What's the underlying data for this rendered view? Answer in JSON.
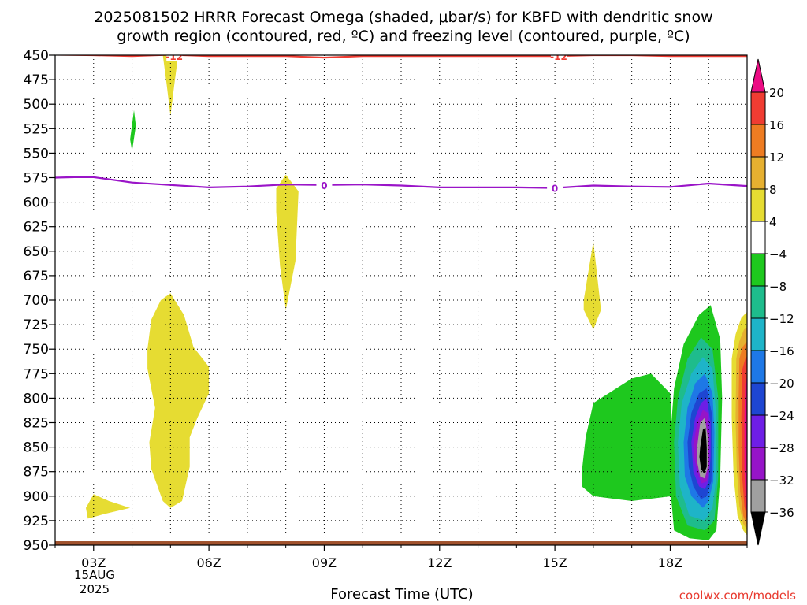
{
  "title_line1": "2025081502 HRRR Forecast Omega (shaded, μbar/s) for KBFD with dendritic snow",
  "title_line2": "growth region (contoured, red, ºC) and freezing level (contoured, purple, ºC)",
  "credit": "coolwx.com/models",
  "date_label": {
    "day": "15AUG",
    "year": "2025"
  },
  "chart_data": {
    "type": "time-height contour",
    "xlabel": "Forecast Time (UTC)",
    "ylabel": "",
    "x_ticks": [
      "03Z",
      "06Z",
      "09Z",
      "12Z",
      "15Z",
      "18Z"
    ],
    "x_range_hours": [
      2,
      20
    ],
    "y_ticks": [
      450,
      475,
      500,
      525,
      550,
      575,
      600,
      625,
      650,
      675,
      700,
      725,
      750,
      775,
      800,
      825,
      850,
      875,
      900,
      925,
      950
    ],
    "ylim": [
      450,
      950
    ],
    "colorbar": {
      "ticks": [
        20,
        16,
        12,
        8,
        4,
        -4,
        -8,
        -12,
        -16,
        -20,
        -24,
        -28,
        -32,
        -36
      ],
      "colors": [
        "#ec0c84",
        "#f03c32",
        "#ee7c22",
        "#e6b030",
        "#e6dc32",
        "#ffffff",
        "#1ec81e",
        "#1ebc8c",
        "#1eb4c8",
        "#1e78e6",
        "#1e46d2",
        "#6e1ee6",
        "#9614c8",
        "#a0a0a0",
        "#000000"
      ]
    },
    "contours": [
      {
        "label": "-12",
        "color": "#f03c32",
        "points": [
          [
            2,
            449.5
          ],
          [
            3,
            450
          ],
          [
            4,
            451
          ],
          [
            5,
            449.5
          ],
          [
            6,
            451
          ],
          [
            7,
            451
          ],
          [
            8,
            451
          ],
          [
            9,
            452.5
          ],
          [
            10,
            451
          ],
          [
            11,
            451
          ],
          [
            12,
            451
          ],
          [
            13,
            451
          ],
          [
            14,
            451
          ],
          [
            15,
            451
          ],
          [
            16,
            450
          ],
          [
            17,
            450
          ],
          [
            18,
            451
          ],
          [
            19,
            451
          ],
          [
            20,
            451
          ]
        ],
        "label_at": [
          [
            5.1,
            451
          ],
          [
            15.1,
            451
          ]
        ]
      },
      {
        "label": "0",
        "color": "#9a14c8",
        "points": [
          [
            2,
            575
          ],
          [
            2.5,
            574.5
          ],
          [
            3,
            574.5
          ],
          [
            4,
            580
          ],
          [
            5,
            582.5
          ],
          [
            6,
            585
          ],
          [
            7,
            584
          ],
          [
            8,
            582
          ],
          [
            9,
            582.5
          ],
          [
            10,
            582
          ],
          [
            11,
            583
          ],
          [
            12,
            585
          ],
          [
            13,
            585
          ],
          [
            14,
            585
          ],
          [
            15,
            585.5
          ],
          [
            16,
            583
          ],
          [
            17,
            584
          ],
          [
            18,
            584.5
          ],
          [
            19,
            581
          ],
          [
            20,
            583.5
          ]
        ],
        "label_at": [
          [
            9,
            582.5
          ],
          [
            15,
            585.5
          ]
        ]
      }
    ],
    "shaded_regions": [
      {
        "value": 4,
        "color": "#e6dc32",
        "points": [
          [
            4.8,
            450
          ],
          [
            5.2,
            450
          ],
          [
            5.1,
            480
          ],
          [
            5.0,
            512
          ],
          [
            4.9,
            480
          ]
        ]
      },
      {
        "value": -4,
        "color": "#1ec81e",
        "points": [
          [
            3.95,
            536
          ],
          [
            4.05,
            506
          ],
          [
            4.1,
            522
          ],
          [
            4.0,
            548
          ]
        ]
      },
      {
        "value": 4,
        "color": "#e6dc32",
        "points": [
          [
            7.75,
            586
          ],
          [
            8.0,
            572
          ],
          [
            8.33,
            589
          ],
          [
            8.25,
            660
          ],
          [
            8.0,
            710
          ],
          [
            7.85,
            665
          ],
          [
            7.75,
            610
          ]
        ]
      },
      {
        "value": 4,
        "color": "#e6dc32",
        "points": [
          [
            15.75,
            700
          ],
          [
            16.0,
            640
          ],
          [
            16.2,
            710
          ],
          [
            16.0,
            730
          ],
          [
            15.75,
            710
          ]
        ]
      },
      {
        "value": 4,
        "color": "#e6dc32",
        "points": [
          [
            4.4,
            750
          ],
          [
            4.5,
            720
          ],
          [
            4.75,
            700
          ],
          [
            5.0,
            693
          ],
          [
            5.35,
            715
          ],
          [
            5.6,
            748
          ],
          [
            6.0,
            768
          ],
          [
            6.0,
            795
          ],
          [
            5.7,
            820
          ],
          [
            5.5,
            840
          ],
          [
            5.5,
            870
          ],
          [
            5.3,
            905
          ],
          [
            5.0,
            912
          ],
          [
            4.8,
            905
          ],
          [
            4.5,
            872
          ],
          [
            4.45,
            845
          ],
          [
            4.6,
            810
          ],
          [
            4.5,
            790
          ],
          [
            4.4,
            770
          ]
        ]
      },
      {
        "value": 4,
        "color": "#e6dc32",
        "points": [
          [
            2.8,
            912
          ],
          [
            3.0,
            898
          ],
          [
            3.4,
            905
          ],
          [
            3.95,
            912
          ],
          [
            3.3,
            918
          ],
          [
            2.85,
            923
          ]
        ]
      },
      {
        "value": -4,
        "color": "#1ec81e",
        "points": [
          [
            15.7,
            875
          ],
          [
            15.8,
            840
          ],
          [
            16.0,
            805
          ],
          [
            17.0,
            780
          ],
          [
            17.5,
            775
          ],
          [
            18.0,
            795
          ],
          [
            18.05,
            840
          ],
          [
            18.05,
            900
          ],
          [
            17.0,
            905
          ],
          [
            16.0,
            900
          ],
          [
            15.7,
            890
          ]
        ]
      },
      {
        "value": -4,
        "color": "#1ec81e",
        "points": [
          [
            18.0,
            842
          ],
          [
            18.1,
            790
          ],
          [
            18.35,
            745
          ],
          [
            18.75,
            715
          ],
          [
            19.05,
            705
          ],
          [
            19.3,
            740
          ],
          [
            19.35,
            800
          ],
          [
            19.3,
            880
          ],
          [
            19.2,
            935
          ],
          [
            19.0,
            945
          ],
          [
            18.5,
            943
          ],
          [
            18.1,
            935
          ],
          [
            18.0,
            890
          ]
        ]
      },
      {
        "value": -8,
        "color": "#1ebc8c",
        "points": [
          [
            18.1,
            845
          ],
          [
            18.2,
            800
          ],
          [
            18.45,
            760
          ],
          [
            18.8,
            738
          ],
          [
            19.1,
            750
          ],
          [
            19.25,
            800
          ],
          [
            19.25,
            880
          ],
          [
            19.15,
            925
          ],
          [
            18.9,
            935
          ],
          [
            18.45,
            930
          ],
          [
            18.15,
            900
          ]
        ]
      },
      {
        "value": -12,
        "color": "#1eb4c8",
        "points": [
          [
            18.2,
            845
          ],
          [
            18.3,
            805
          ],
          [
            18.55,
            775
          ],
          [
            18.85,
            758
          ],
          [
            19.1,
            770
          ],
          [
            19.2,
            820
          ],
          [
            19.2,
            880
          ],
          [
            19.1,
            912
          ],
          [
            18.9,
            925
          ],
          [
            18.5,
            920
          ],
          [
            18.25,
            890
          ]
        ]
      },
      {
        "value": -16,
        "color": "#1e78e6",
        "points": [
          [
            18.35,
            845
          ],
          [
            18.45,
            810
          ],
          [
            18.65,
            785
          ],
          [
            18.9,
            775
          ],
          [
            19.1,
            795
          ],
          [
            19.15,
            835
          ],
          [
            19.12,
            885
          ],
          [
            19.0,
            905
          ],
          [
            18.85,
            912
          ],
          [
            18.55,
            900
          ],
          [
            18.38,
            880
          ]
        ]
      },
      {
        "value": -20,
        "color": "#1e46d2",
        "points": [
          [
            18.45,
            845
          ],
          [
            18.55,
            815
          ],
          [
            18.75,
            795
          ],
          [
            18.95,
            790
          ],
          [
            19.08,
            815
          ],
          [
            19.1,
            850
          ],
          [
            19.07,
            885
          ],
          [
            18.95,
            900
          ],
          [
            18.8,
            903
          ],
          [
            18.6,
            890
          ],
          [
            18.48,
            870
          ]
        ]
      },
      {
        "value": -24,
        "color": "#6e1ee6",
        "points": [
          [
            18.55,
            845
          ],
          [
            18.65,
            820
          ],
          [
            18.8,
            805
          ],
          [
            18.95,
            800
          ],
          [
            19.05,
            825
          ],
          [
            19.05,
            860
          ],
          [
            19.0,
            885
          ],
          [
            18.9,
            893
          ],
          [
            18.75,
            890
          ],
          [
            18.6,
            875
          ]
        ]
      },
      {
        "value": -28,
        "color": "#9614c8",
        "points": [
          [
            18.6,
            848
          ],
          [
            18.7,
            825
          ],
          [
            18.85,
            812
          ],
          [
            18.98,
            815
          ],
          [
            19.02,
            840
          ],
          [
            19.02,
            870
          ],
          [
            18.95,
            885
          ],
          [
            18.82,
            887
          ],
          [
            18.7,
            875
          ],
          [
            18.62,
            860
          ]
        ]
      },
      {
        "value": -32,
        "color": "#a0a0a0",
        "points": [
          [
            18.7,
            850
          ],
          [
            18.78,
            825
          ],
          [
            18.9,
            820
          ],
          [
            18.98,
            840
          ],
          [
            18.98,
            870
          ],
          [
            18.9,
            882
          ],
          [
            18.78,
            880
          ],
          [
            18.7,
            865
          ]
        ]
      },
      {
        "value": -36,
        "color": "#000000",
        "points": [
          [
            18.78,
            850
          ],
          [
            18.85,
            832
          ],
          [
            18.92,
            830
          ],
          [
            18.95,
            850
          ],
          [
            18.95,
            870
          ],
          [
            18.88,
            877
          ],
          [
            18.8,
            872
          ],
          [
            18.76,
            860
          ]
        ]
      },
      {
        "value": 4,
        "color": "#e6dc32",
        "points": [
          [
            19.6,
            760
          ],
          [
            19.7,
            735
          ],
          [
            19.85,
            718
          ],
          [
            20.0,
            712
          ],
          [
            20.0,
            940
          ],
          [
            19.9,
            935
          ],
          [
            19.75,
            920
          ],
          [
            19.65,
            880
          ],
          [
            19.6,
            820
          ]
        ]
      },
      {
        "value": 8,
        "color": "#e6b030",
        "points": [
          [
            19.72,
            760
          ],
          [
            19.8,
            742
          ],
          [
            19.92,
            730
          ],
          [
            20.0,
            728
          ],
          [
            20.0,
            935
          ],
          [
            19.9,
            928
          ],
          [
            19.8,
            910
          ],
          [
            19.73,
            870
          ],
          [
            19.7,
            820
          ]
        ]
      },
      {
        "value": 12,
        "color": "#ee7c22",
        "points": [
          [
            19.8,
            760
          ],
          [
            19.88,
            748
          ],
          [
            20.0,
            742
          ],
          [
            20.0,
            930
          ],
          [
            19.9,
            920
          ],
          [
            19.82,
            895
          ],
          [
            19.78,
            850
          ],
          [
            19.78,
            800
          ]
        ]
      },
      {
        "value": 16,
        "color": "#f03c32",
        "points": [
          [
            19.88,
            770
          ],
          [
            19.95,
            760
          ],
          [
            20.0,
            757
          ],
          [
            20.0,
            925
          ],
          [
            19.93,
            910
          ],
          [
            19.87,
            880
          ],
          [
            19.85,
            820
          ]
        ]
      },
      {
        "value": 20,
        "color": "#ec0c84",
        "points": [
          [
            19.95,
            785
          ],
          [
            20.0,
            778
          ],
          [
            20.0,
            918
          ],
          [
            19.96,
            905
          ],
          [
            19.93,
            870
          ],
          [
            19.93,
            820
          ]
        ]
      }
    ],
    "terrain": {
      "color": "#a0522d",
      "top_hpa": 946
    }
  }
}
